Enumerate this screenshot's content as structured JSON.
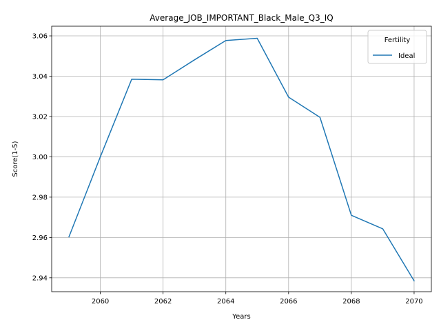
{
  "chart_data": {
    "type": "line",
    "title": "Average_JOB_IMPORTANT_Black_Male_Q3_IQ",
    "xlabel": "Years",
    "ylabel": "Score(1-5)",
    "xlim": [
      2058.45,
      2070.55
    ],
    "ylim": [
      2.9331,
      3.0648
    ],
    "xticks": [
      2060,
      2062,
      2064,
      2066,
      2068,
      2070
    ],
    "yticks": [
      2.94,
      2.96,
      2.98,
      3.0,
      3.02,
      3.04,
      3.06
    ],
    "xtick_labels": [
      "2060",
      "2062",
      "2064",
      "2066",
      "2068",
      "2070"
    ],
    "ytick_labels": [
      "2.94",
      "2.96",
      "2.98",
      "3.00",
      "3.02",
      "3.04",
      "3.06"
    ],
    "grid": true,
    "legend": {
      "title": "Fertility",
      "position": "top-right"
    },
    "series": [
      {
        "name": "Ideal",
        "color": "#1f77b4",
        "x": [
          2059,
          2060,
          2061,
          2062,
          2063,
          2064,
          2065,
          2066,
          2067,
          2068,
          2069,
          2070
        ],
        "y": [
          2.9603,
          3.0,
          3.0385,
          3.0382,
          3.0481,
          3.0577,
          3.0588,
          3.0296,
          3.0196,
          2.971,
          2.9643,
          2.9385
        ]
      }
    ]
  }
}
